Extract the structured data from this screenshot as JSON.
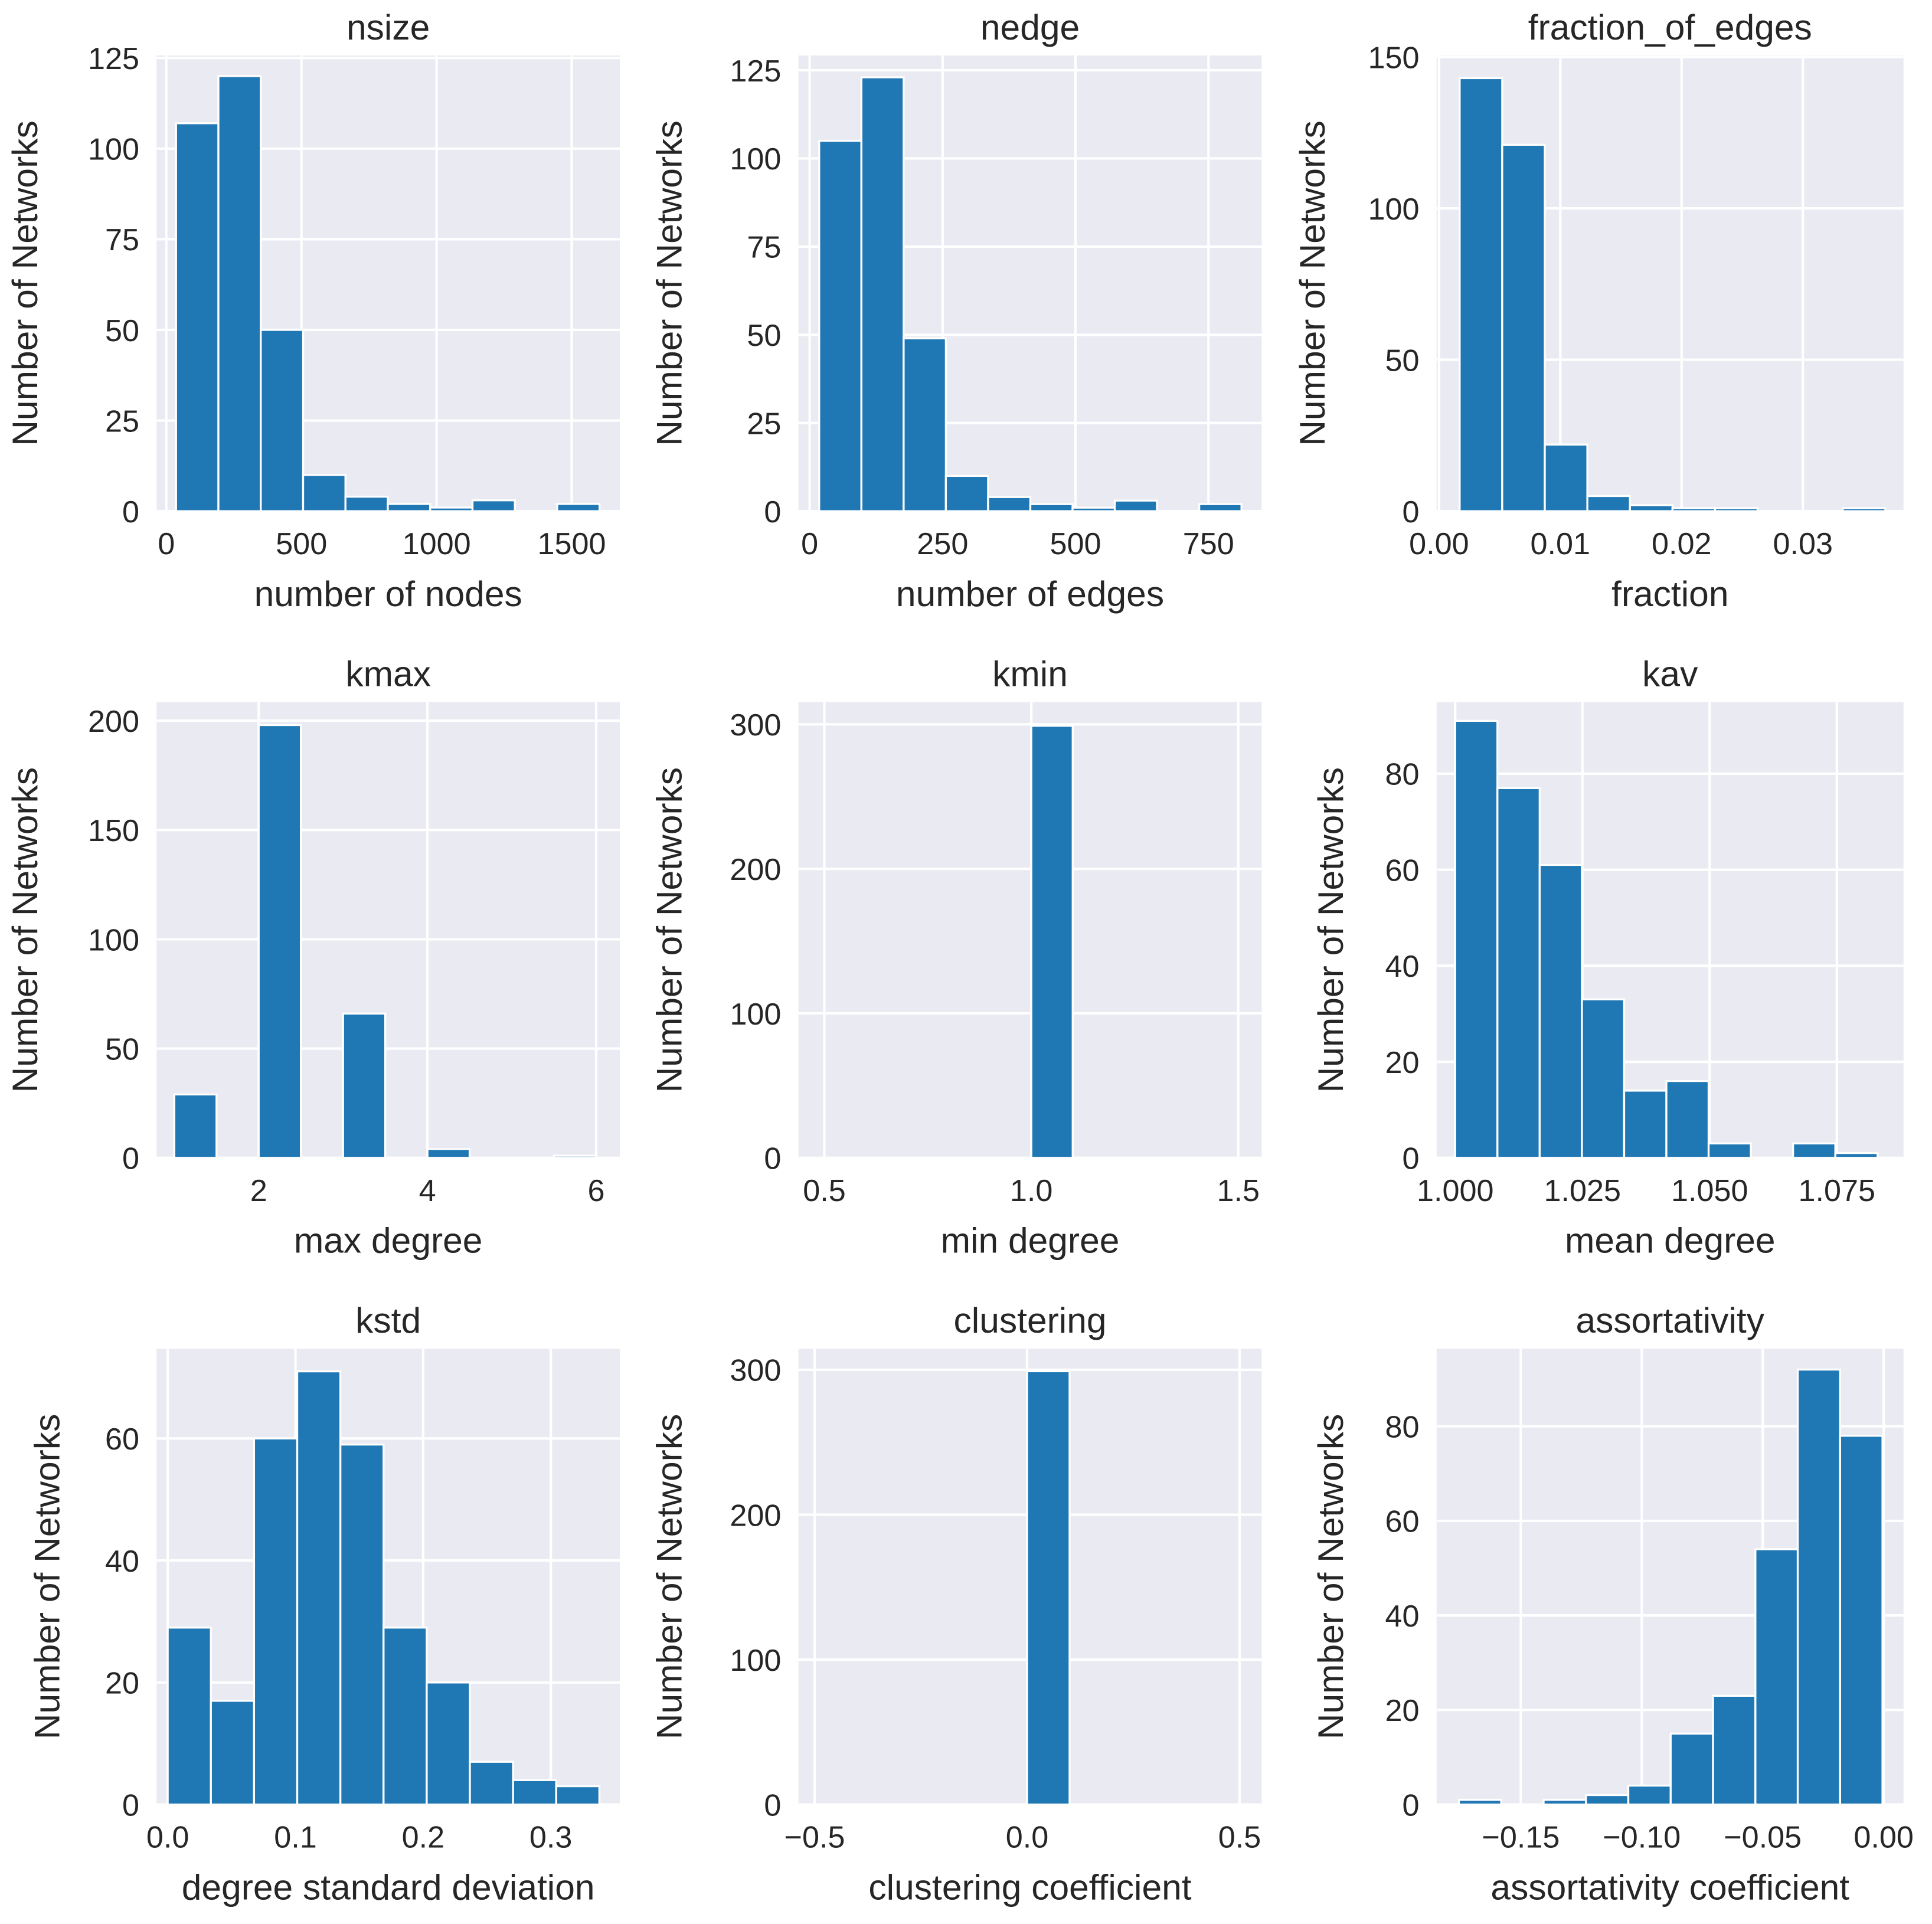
{
  "bar_color": "#1f77b4",
  "background_color": "#eaeaf2",
  "chart_data": [
    {
      "type": "bar",
      "title": "nsize",
      "xlabel": "number of nodes",
      "ylabel": "Number of Networks",
      "bin_start": 36,
      "bin_width": 156.7,
      "values": [
        107,
        120,
        50,
        10,
        4,
        2,
        1,
        3,
        0,
        2
      ],
      "xlim": [
        -36,
        1678
      ],
      "ylim": [
        0,
        125.7
      ],
      "xticks": [
        0,
        500,
        1000,
        1500
      ],
      "xtick_labels": [
        "0",
        "500",
        "1000",
        "1500"
      ],
      "yticks": [
        0,
        25,
        50,
        75,
        100,
        125
      ],
      "ytick_labels": [
        "0",
        "25",
        "50",
        "75",
        "100",
        "125"
      ],
      "grid": true
    },
    {
      "type": "bar",
      "title": "nedge",
      "xlabel": "number of edges",
      "ylabel": "Number of Networks",
      "bin_start": 18,
      "bin_width": 79.4,
      "values": [
        105,
        123,
        49,
        10,
        4,
        2,
        1,
        3,
        0,
        2
      ],
      "xlim": [
        -21,
        850
      ],
      "ylim": [
        0,
        129.2
      ],
      "xticks": [
        0,
        250,
        500,
        750
      ],
      "xtick_labels": [
        "0",
        "250",
        "500",
        "750"
      ],
      "yticks": [
        0,
        25,
        50,
        75,
        100,
        125
      ],
      "ytick_labels": [
        "0",
        "25",
        "50",
        "75",
        "100",
        "125"
      ],
      "grid": true
    },
    {
      "type": "bar",
      "title": "fraction_of_edges",
      "xlabel": "fraction",
      "ylabel": "Number of Networks",
      "bin_start": 0.0017,
      "bin_width": 0.00351,
      "values": [
        143,
        121,
        22,
        5,
        2,
        1,
        1,
        0,
        0,
        1
      ],
      "xlim": [
        -0.0002,
        0.0383
      ],
      "ylim": [
        0,
        150.5
      ],
      "xticks": [
        0,
        0.01,
        0.02,
        0.03
      ],
      "xtick_labels": [
        "0.00",
        "0.01",
        "0.02",
        "0.03"
      ],
      "yticks": [
        0,
        50,
        100,
        150
      ],
      "ytick_labels": [
        "0",
        "50",
        "100",
        "150"
      ],
      "grid": true
    },
    {
      "type": "bar",
      "title": "kmax",
      "xlabel": "max degree",
      "ylabel": "Number of Networks",
      "bin_start": 1,
      "bin_width": 0.5,
      "values": [
        29,
        0,
        198,
        0,
        66,
        0,
        4,
        0,
        0,
        1
      ],
      "xlim": [
        0.79,
        6.28
      ],
      "ylim": [
        0,
        208.5
      ],
      "xticks": [
        2,
        4,
        6
      ],
      "xtick_labels": [
        "2",
        "4",
        "6"
      ],
      "yticks": [
        0,
        50,
        100,
        150,
        200
      ],
      "ytick_labels": [
        "0",
        "50",
        "100",
        "150",
        "200"
      ],
      "grid": true
    },
    {
      "type": "bar",
      "title": "kmin",
      "xlabel": "min degree",
      "ylabel": "Number of Networks",
      "bin_start": 0.5,
      "bin_width": 0.1,
      "values": [
        0,
        0,
        0,
        0,
        0,
        299,
        0,
        0,
        0,
        0
      ],
      "xlim": [
        0.4375,
        1.5565
      ],
      "ylim": [
        0,
        315.4
      ],
      "xticks": [
        0.5,
        1.0,
        1.5
      ],
      "xtick_labels": [
        "0.5",
        "1.0",
        "1.5"
      ],
      "yticks": [
        0,
        100,
        200,
        300
      ],
      "ytick_labels": [
        "0",
        "100",
        "200",
        "300"
      ],
      "grid": true
    },
    {
      "type": "bar",
      "title": "kav",
      "xlabel": "mean degree",
      "ylabel": "Number of Networks",
      "bin_start": 1.0,
      "bin_width": 0.0083,
      "values": [
        91,
        77,
        61,
        33,
        14,
        16,
        3,
        0,
        3,
        1
      ],
      "xlim": [
        0.99635,
        1.0881
      ],
      "ylim": [
        0,
        94.9
      ],
      "xticks": [
        1.0,
        1.025,
        1.05,
        1.075
      ],
      "xtick_labels": [
        "1.000",
        "1.025",
        "1.050",
        "1.075"
      ],
      "yticks": [
        0,
        20,
        40,
        60,
        80
      ],
      "ytick_labels": [
        "0",
        "20",
        "40",
        "60",
        "80"
      ],
      "grid": true
    },
    {
      "type": "bar",
      "title": "kstd",
      "xlabel": "degree standard deviation",
      "ylabel": "Number of Networks",
      "bin_start": 0,
      "bin_width": 0.0338,
      "values": [
        29,
        17,
        60,
        71,
        59,
        29,
        20,
        7,
        4,
        3
      ],
      "xlim": [
        -0.0087,
        0.354
      ],
      "ylim": [
        0,
        74.7
      ],
      "xticks": [
        0,
        0.1,
        0.2,
        0.3
      ],
      "xtick_labels": [
        "0.0",
        "0.1",
        "0.2",
        "0.3"
      ],
      "yticks": [
        0,
        20,
        40,
        60
      ],
      "ytick_labels": [
        "0",
        "20",
        "40",
        "60"
      ],
      "grid": true
    },
    {
      "type": "bar",
      "title": "clustering",
      "xlabel": "clustering coefficient",
      "ylabel": "Number of Networks",
      "bin_start": -0.5,
      "bin_width": 0.1,
      "values": [
        0,
        0,
        0,
        0,
        0,
        299,
        0,
        0,
        0,
        0
      ],
      "xlim": [
        -0.538,
        0.552
      ],
      "ylim": [
        0,
        314.5
      ],
      "xticks": [
        -0.5,
        0,
        0.5
      ],
      "xtick_labels": [
        "−0.5",
        "0.0",
        "0.5"
      ],
      "yticks": [
        0,
        100,
        200,
        300
      ],
      "ytick_labels": [
        "0",
        "100",
        "200",
        "300"
      ],
      "grid": true
    },
    {
      "type": "bar",
      "title": "assortativity",
      "xlabel": "assortativity coefficient",
      "ylabel": "Number of Networks",
      "bin_start": -0.1756,
      "bin_width": 0.01751,
      "values": [
        1,
        0,
        1,
        2,
        4,
        15,
        23,
        54,
        92,
        78
      ],
      "xlim": [
        -0.1848,
        0.0082
      ],
      "ylim": [
        0,
        96.4
      ],
      "xticks": [
        -0.15,
        -0.1,
        -0.05,
        0
      ],
      "xtick_labels": [
        "−0.15",
        "−0.10",
        "−0.05",
        "0.00"
      ],
      "yticks": [
        0,
        20,
        40,
        60,
        80
      ],
      "ytick_labels": [
        "0",
        "20",
        "40",
        "60",
        "80"
      ],
      "grid": true
    }
  ]
}
